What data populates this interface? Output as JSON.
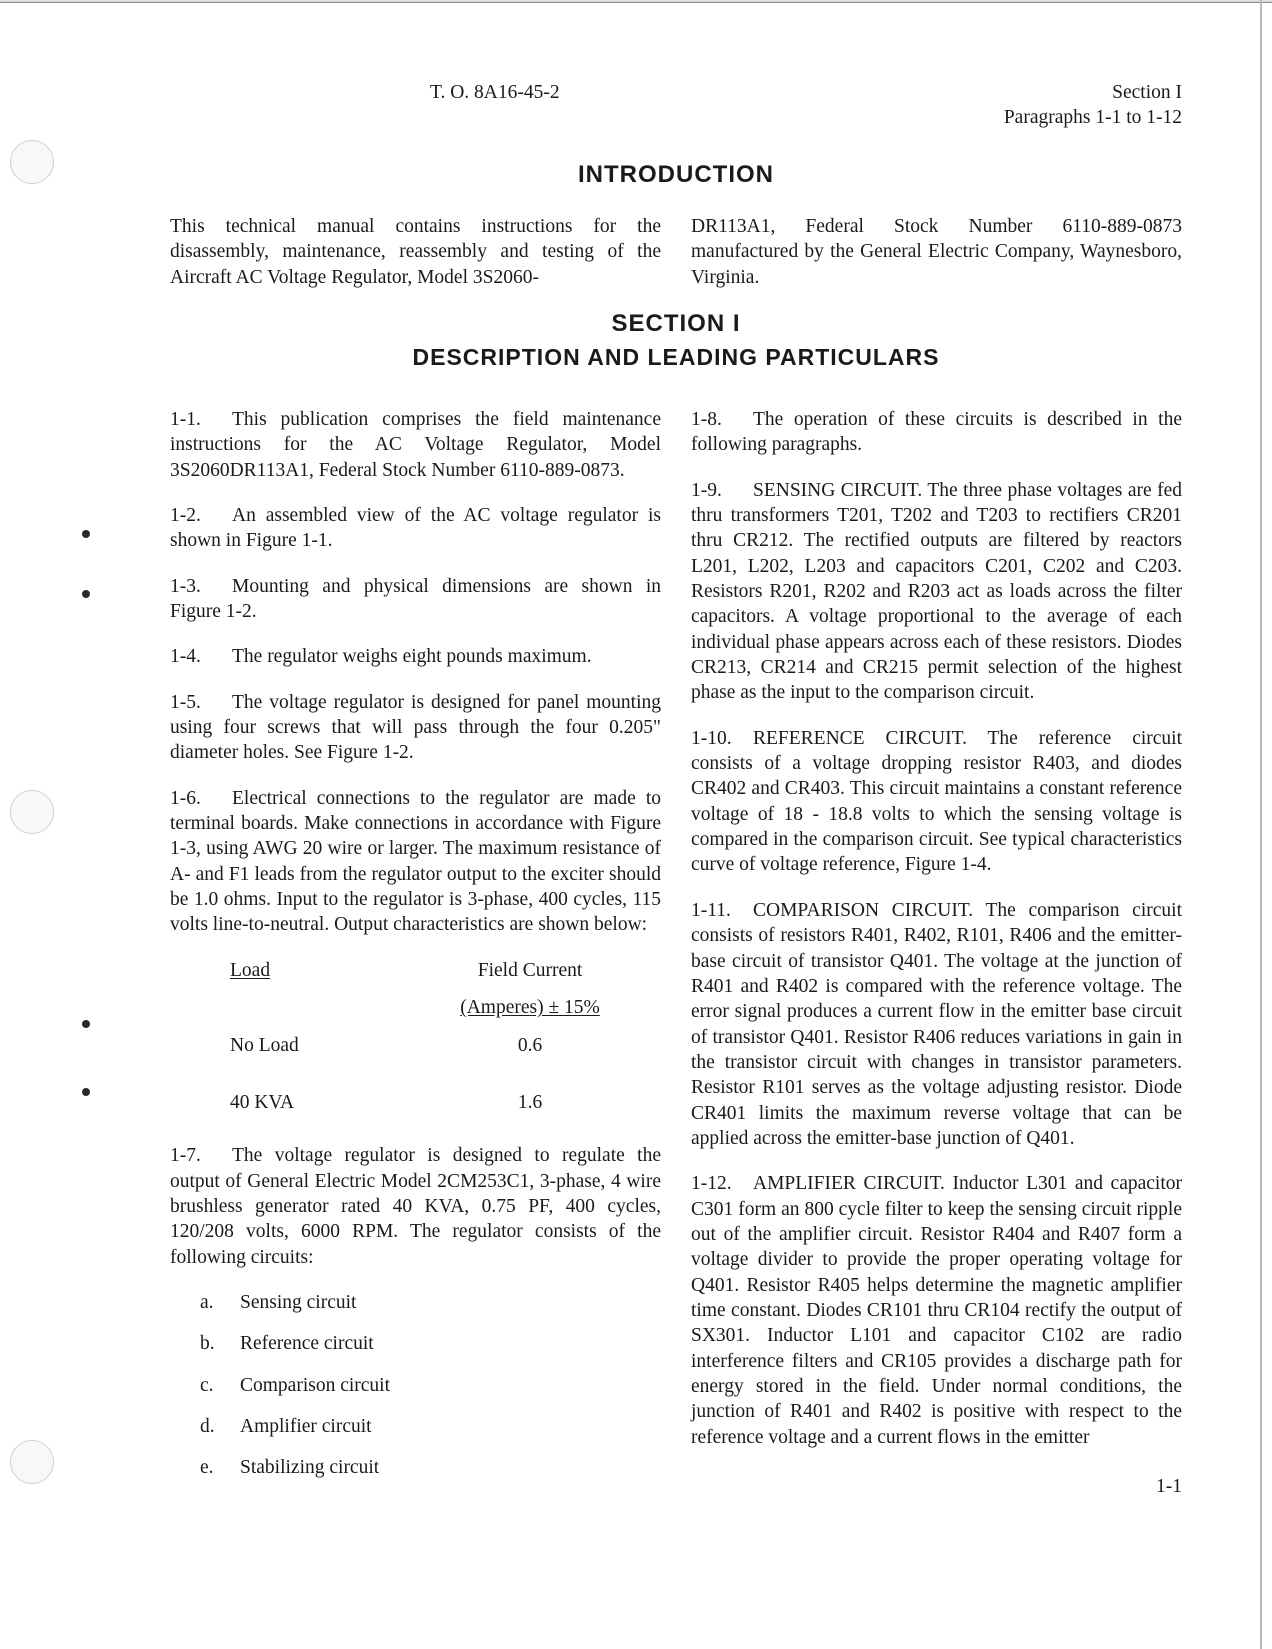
{
  "header": {
    "to_number": "T. O. 8A16-45-2",
    "section_label": "Section I",
    "para_range": "Paragraphs 1-1 to 1-12"
  },
  "intro": {
    "heading": "INTRODUCTION",
    "left_para": "This technical manual contains instructions for the disassembly, maintenance, reassembly and testing of the Aircraft AC Voltage Regulator, Model 3S2060-",
    "right_para": "DR113A1, Federal Stock Number 6110-889-0873 manufactured by the General Electric Company, Waynesboro, Virginia."
  },
  "section": {
    "heading": "SECTION I",
    "sub_heading": "DESCRIPTION AND LEADING PARTICULARS"
  },
  "paras": {
    "p1_1_num": "1-1.",
    "p1_1": "This publication comprises the field maintenance instructions for the AC Voltage Regulator, Model 3S2060DR113A1, Federal Stock Number 6110-889-0873.",
    "p1_2_num": "1-2.",
    "p1_2": "An assembled view of the AC voltage regulator is shown in Figure 1-1.",
    "p1_3_num": "1-3.",
    "p1_3": "Mounting and physical dimensions are shown in Figure 1-2.",
    "p1_4_num": "1-4.",
    "p1_4": "The regulator weighs eight pounds maximum.",
    "p1_5_num": "1-5.",
    "p1_5": "The voltage regulator is designed for panel mounting using four screws that will pass through the four 0.205\" diameter holes. See Figure 1-2.",
    "p1_6_num": "1-6.",
    "p1_6": "Electrical connections to the regulator are made to terminal boards. Make connections in accordance with Figure 1-3, using AWG 20 wire or larger. The maximum resistance of A- and F1 leads from the regulator output to the exciter should be 1.0 ohms. Input to the regulator is 3-phase, 400 cycles, 115 volts line-to-neutral. Output characteristics are shown below:",
    "p1_7_num": "1-7.",
    "p1_7": "The voltage regulator is designed to regulate the output of General Electric Model 2CM253C1, 3-phase, 4 wire brushless generator rated 40 KVA, 0.75 PF, 400 cycles, 120/208 volts, 6000 RPM. The regulator consists of the following circuits:",
    "p1_8_num": "1-8.",
    "p1_8": "The operation of these circuits is described in the following paragraphs.",
    "p1_9_num": "1-9.",
    "p1_9": "SENSING CIRCUIT. The three phase voltages are fed thru transformers T201, T202 and T203 to rectifiers CR201 thru CR212. The rectified outputs are filtered by reactors L201, L202, L203 and capacitors C201, C202 and C203. Resistors R201, R202 and R203 act as loads across the filter capacitors. A voltage proportional to the average of each individual phase appears across each of these resistors. Diodes CR213, CR214 and CR215 permit selection of the highest phase as the input to the comparison circuit.",
    "p1_10_num": "1-10.",
    "p1_10": "REFERENCE CIRCUIT. The reference circuit consists of a voltage dropping resistor R403, and diodes CR402 and CR403. This circuit maintains a constant reference voltage of 18 - 18.8 volts to which the sensing voltage is compared in the comparison circuit. See typical characteristics curve of voltage reference, Figure 1-4.",
    "p1_11_num": "1-11.",
    "p1_11": "COMPARISON CIRCUIT. The comparison circuit consists of resistors R401, R402, R101, R406 and the emitter-base circuit of transistor Q401. The voltage at the junction of R401 and R402 is compared with the reference voltage. The error signal produces a current flow in the emitter base circuit of transistor Q401. Resistor R406 reduces variations in gain in the transistor circuit with changes in transistor parameters. Resistor R101 serves as the voltage adjusting resistor. Diode CR401 limits the maximum reverse voltage that can be applied across the emitter-base junction of Q401.",
    "p1_12_num": "1-12.",
    "p1_12": "AMPLIFIER CIRCUIT. Inductor L301 and capacitor C301 form an 800 cycle filter to keep the sensing circuit ripple out of the amplifier circuit. Resistor R404 and R407 form a voltage divider to provide the proper operating voltage for Q401. Resistor R405 helps determine the magnetic amplifier time constant. Diodes CR101 thru CR104 rectify the output of SX301. Inductor L101 and capacitor C102 are radio interference filters and CR105 provides a discharge path for energy stored in the field. Under normal conditions, the junction of R401 and R402 is positive with respect to the reference voltage and a current flows in the emitter"
  },
  "load_table": {
    "head_load": "Load",
    "head_current": "Field Current",
    "head_current_sub": "(Amperes) ± 15%",
    "rows": [
      {
        "load": "No Load",
        "current": "0.6"
      },
      {
        "load": "40 KVA",
        "current": "1.6"
      }
    ]
  },
  "circuits": [
    {
      "letter": "a.",
      "name": "Sensing circuit"
    },
    {
      "letter": "b.",
      "name": "Reference circuit"
    },
    {
      "letter": "c.",
      "name": "Comparison circuit"
    },
    {
      "letter": "d.",
      "name": "Amplifier circuit"
    },
    {
      "letter": "e.",
      "name": "Stabilizing circuit"
    }
  ],
  "page_number": "1-1",
  "colors": {
    "background": "#ffffff",
    "text": "#1a1a1a"
  },
  "typography": {
    "body_font": "Times New Roman, serif",
    "heading_font": "Arial, Helvetica, sans-serif",
    "body_size_pt": 15,
    "heading_size_pt": 18
  }
}
